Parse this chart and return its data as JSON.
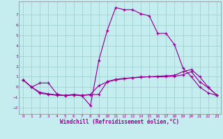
{
  "background_color": "#c5edf0",
  "grid_color": "#99cccc",
  "line_color": "#990099",
  "xlabel": "Windchill (Refroidissement éolien,°C)",
  "xlim": [
    -0.5,
    23.5
  ],
  "ylim": [
    -2.6,
    8.3
  ],
  "xticks": [
    0,
    1,
    2,
    3,
    4,
    5,
    6,
    7,
    8,
    9,
    10,
    11,
    12,
    13,
    14,
    15,
    16,
    17,
    18,
    19,
    20,
    21,
    22,
    23
  ],
  "yticks": [
    -2,
    -1,
    0,
    1,
    2,
    3,
    4,
    5,
    6,
    7
  ],
  "line1_x": [
    0,
    1,
    2,
    3,
    4,
    5,
    6,
    7,
    8,
    9,
    10,
    11,
    12,
    13,
    14,
    15,
    16,
    17,
    18,
    19,
    20,
    21,
    22,
    23
  ],
  "line1_y": [
    0.7,
    0.0,
    0.4,
    0.4,
    -0.65,
    -0.85,
    -0.75,
    -0.85,
    -1.8,
    2.6,
    5.5,
    7.7,
    7.5,
    7.5,
    7.1,
    6.9,
    5.2,
    5.2,
    4.1,
    1.85,
    1.0,
    0.0,
    -0.55,
    -0.8
  ],
  "line2_x": [
    0,
    1,
    2,
    3,
    4,
    5,
    6,
    7,
    8,
    9,
    10,
    11,
    12,
    13,
    14,
    15,
    16,
    17,
    18,
    19,
    20,
    21,
    22,
    23
  ],
  "line2_y": [
    0.7,
    0.0,
    -0.6,
    -0.7,
    -0.8,
    -0.8,
    -0.75,
    -0.8,
    -0.75,
    -0.7,
    0.55,
    0.75,
    0.85,
    0.9,
    1.0,
    1.0,
    1.05,
    1.1,
    1.15,
    1.5,
    1.7,
    1.0,
    0.0,
    -0.75
  ],
  "line3_x": [
    0,
    1,
    2,
    3,
    4,
    5,
    6,
    7,
    8,
    9,
    10,
    11,
    12,
    13,
    14,
    15,
    16,
    17,
    18,
    19,
    20,
    21,
    22,
    23
  ],
  "line3_y": [
    0.7,
    0.0,
    -0.5,
    -0.65,
    -0.75,
    -0.8,
    -0.7,
    -0.8,
    -0.7,
    0.15,
    0.5,
    0.7,
    0.8,
    0.9,
    0.95,
    1.0,
    1.0,
    1.0,
    1.05,
    1.2,
    1.5,
    0.5,
    -0.05,
    -0.75
  ]
}
